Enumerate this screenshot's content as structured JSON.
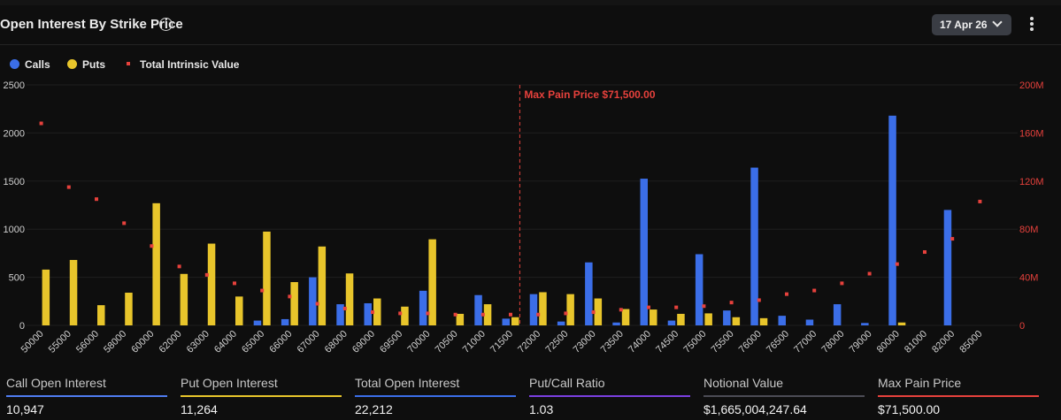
{
  "header": {
    "title": "Open Interest By Strike Price",
    "info_icon": "info-icon",
    "date": "17 Apr 26",
    "menu_icon": "more-vertical-icon"
  },
  "legend": [
    {
      "label": "Calls",
      "color": "#3b6ee8"
    },
    {
      "label": "Puts",
      "color": "#e8c52b"
    },
    {
      "label": "Total Intrinsic Value",
      "color": "#e6413c"
    }
  ],
  "chart_data": {
    "type": "bar",
    "title": "Open Interest By Strike Price",
    "categories": [
      "50000",
      "55000",
      "56000",
      "58000",
      "60000",
      "62000",
      "63000",
      "64000",
      "65000",
      "66000",
      "67000",
      "68000",
      "69000",
      "69500",
      "70000",
      "70500",
      "71000",
      "71500",
      "72000",
      "72500",
      "73000",
      "73500",
      "74000",
      "74500",
      "75000",
      "75500",
      "76000",
      "76500",
      "77000",
      "78000",
      "79000",
      "80000",
      "81000",
      "82000",
      "85000"
    ],
    "series": [
      {
        "name": "Calls",
        "axis": "left",
        "values": [
          0,
          0,
          0,
          0,
          0,
          0,
          0,
          0,
          50,
          65,
          500,
          220,
          230,
          0,
          360,
          0,
          315,
          70,
          325,
          40,
          655,
          30,
          1525,
          50,
          740,
          155,
          1640,
          100,
          60,
          220,
          25,
          2180,
          0,
          1200,
          0
        ]
      },
      {
        "name": "Puts",
        "axis": "left",
        "values": [
          580,
          680,
          210,
          340,
          1270,
          535,
          850,
          300,
          975,
          450,
          820,
          540,
          280,
          195,
          895,
          120,
          220,
          85,
          345,
          325,
          280,
          170,
          165,
          120,
          125,
          85,
          75,
          0,
          0,
          0,
          0,
          30,
          0,
          0,
          0
        ]
      },
      {
        "name": "Total Intrinsic Value",
        "axis": "right",
        "values": [
          168,
          115,
          105,
          85,
          66,
          49,
          42,
          35,
          29,
          24,
          18,
          14,
          11,
          10,
          10,
          9,
          9,
          9,
          9,
          10,
          11,
          13,
          15,
          15,
          16,
          19,
          21,
          26,
          29,
          35,
          43,
          51,
          61,
          72,
          103
        ]
      }
    ],
    "y_left": {
      "lim": [
        0,
        2500
      ],
      "ticks": [
        "0",
        "500",
        "1000",
        "1500",
        "2000",
        "2500"
      ]
    },
    "y_right": {
      "lim": [
        0,
        200
      ],
      "ticks": [
        "0",
        "40M",
        "80M",
        "120M",
        "160M",
        "200M"
      ]
    },
    "annotation": {
      "label": "Max Pain Price $71,500.00",
      "value": 71500
    }
  },
  "stats": [
    {
      "label": "Call Open Interest",
      "value": "10,947",
      "color": "#4f7cf0"
    },
    {
      "label": "Put Open Interest",
      "value": "11,264",
      "color": "#e8c52b"
    },
    {
      "label": "Total Open Interest",
      "value": "22,212",
      "color": "#3b6ee8"
    },
    {
      "label": "Put/Call Ratio",
      "value": "1.03",
      "color": "#7a3fe0"
    },
    {
      "label": "Notional Value",
      "value": "$1,665,004,247.64",
      "color": "#4b4b55"
    },
    {
      "label": "Max Pain Price",
      "value": "$71,500.00",
      "color": "#e6413c"
    }
  ]
}
